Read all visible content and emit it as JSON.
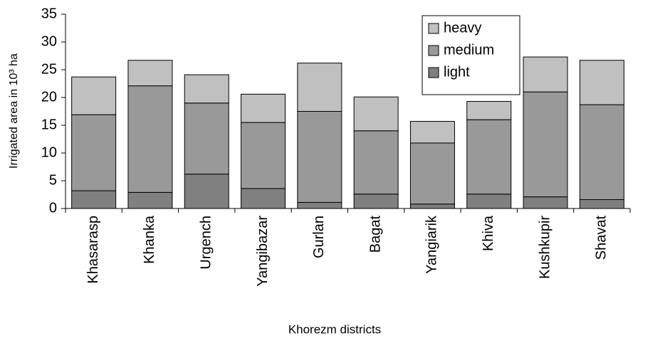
{
  "chart_data": {
    "type": "stacked_bar",
    "x_label": "Khorezm districts",
    "y_label": "Irrigated area in 10³ ha",
    "categories": [
      "Khasarasp",
      "Khanka",
      "Urgench",
      "Yangibazar",
      "Gurlan",
      "Bagat",
      "Yangiarik",
      "Khiva",
      "Kushkupir",
      "Shavat"
    ],
    "series": [
      {
        "name": "light",
        "color": "#808080",
        "values": [
          3.2,
          2.9,
          6.2,
          3.6,
          1.1,
          2.6,
          0.8,
          2.6,
          2.1,
          1.6
        ]
      },
      {
        "name": "medium",
        "color": "#999999",
        "values": [
          13.7,
          19.2,
          12.8,
          11.9,
          16.4,
          11.4,
          11.0,
          13.4,
          18.9,
          17.1
        ]
      },
      {
        "name": "heavy",
        "color": "#c0c0c0",
        "values": [
          6.8,
          4.6,
          5.1,
          5.1,
          8.7,
          6.1,
          3.9,
          3.3,
          6.3,
          8.0
        ]
      }
    ],
    "ylim": [
      0,
      35
    ],
    "yticks": [
      0,
      5,
      10,
      15,
      20,
      25,
      30,
      35
    ],
    "legend": "upper-right"
  }
}
